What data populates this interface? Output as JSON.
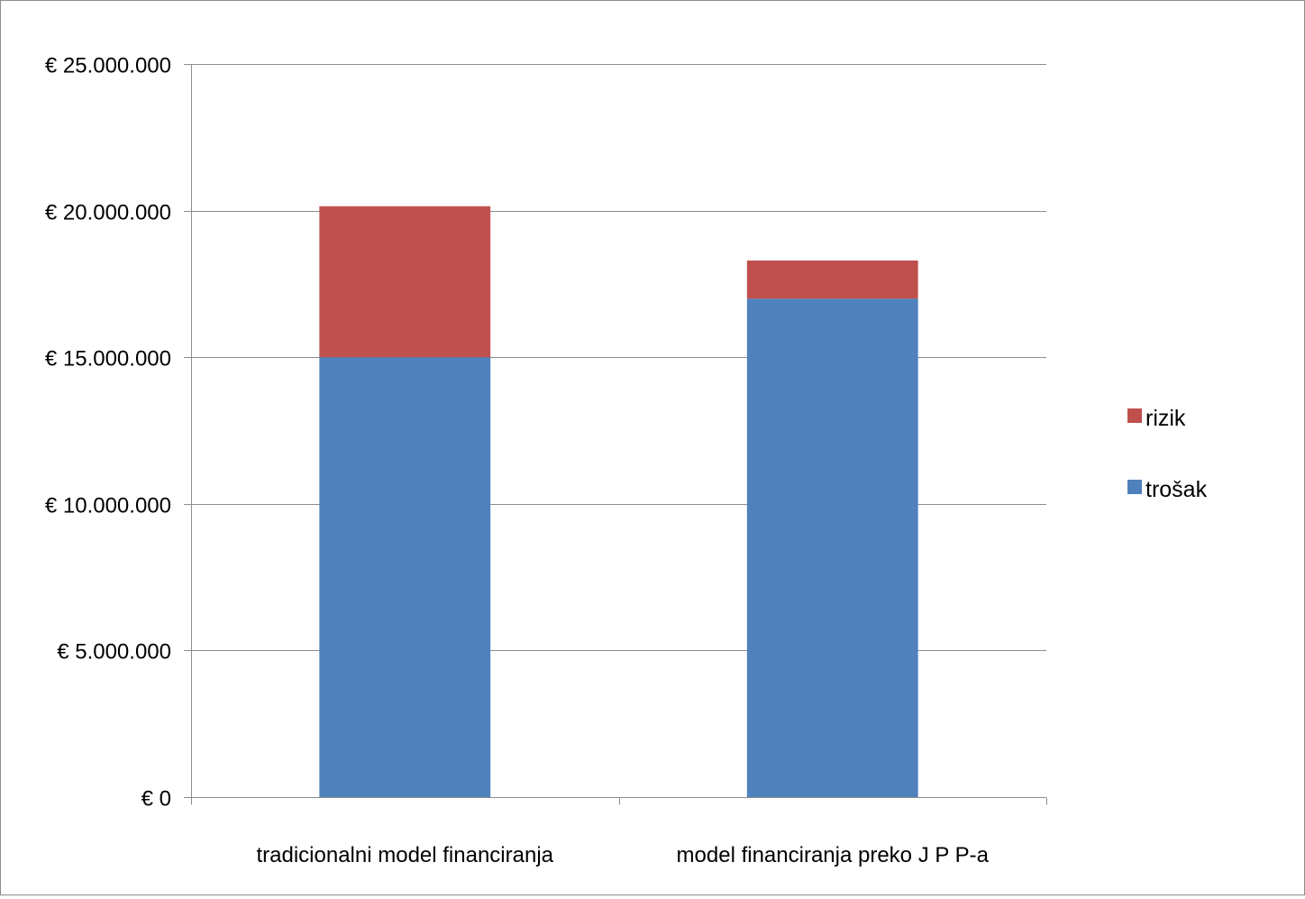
{
  "chart_data": {
    "type": "bar",
    "stacked": true,
    "title": "",
    "xlabel": "",
    "ylabel": "",
    "categories": [
      "tradicionalni model financiranja",
      "model financiranja preko J P P-a"
    ],
    "series": [
      {
        "name": "trošak",
        "values": [
          15000000,
          17000000
        ],
        "color": "#4f81bd"
      },
      {
        "name": "rizik",
        "values": [
          5150000,
          1300000
        ],
        "color": "#c0504d"
      }
    ],
    "ylim": [
      0,
      25000000
    ],
    "y_ticks": [
      0,
      5000000,
      10000000,
      15000000,
      20000000,
      25000000
    ],
    "y_tick_labels": [
      "€ 0",
      "€ 5.000.000",
      "€ 10.000.000",
      "€ 15.000.000",
      "€ 20.000.000",
      "€ 25.000.000"
    ],
    "grid": true,
    "legend_position": "right",
    "legend_order": [
      "rizik",
      "trošak"
    ]
  }
}
